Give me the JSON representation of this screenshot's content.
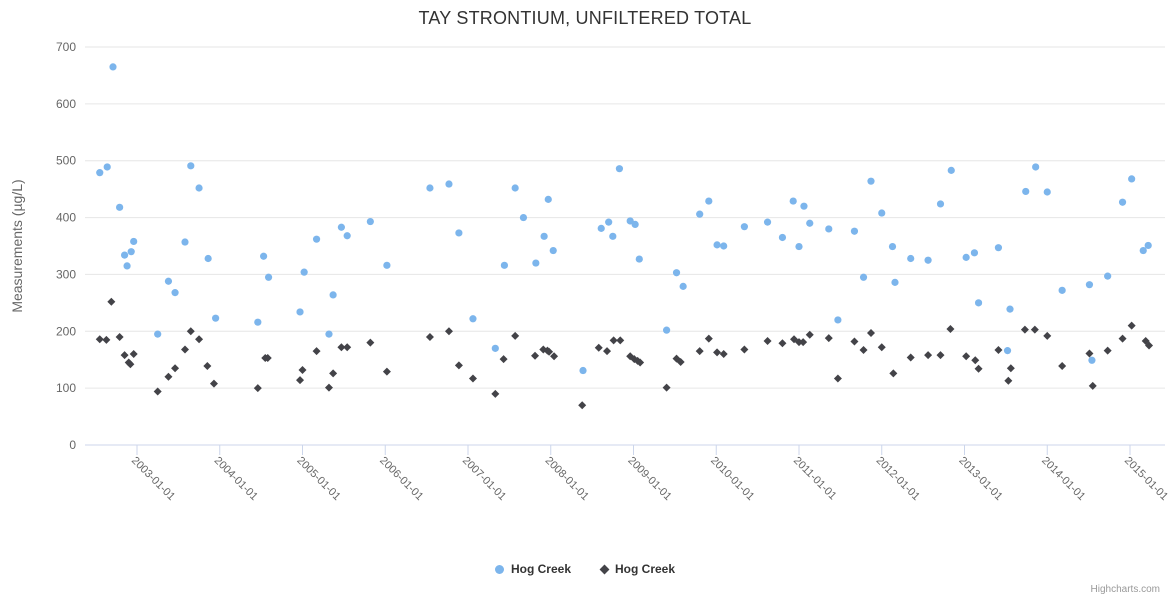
{
  "title": "TAY STRONTIUM, UNFILTERED TOTAL",
  "credits": "Highcharts.com",
  "colors": {
    "series_blue": "#7cb5ec",
    "series_dark": "#434348",
    "gridline": "#e6e6e6",
    "axis_line": "#ccd6eb",
    "title_text": "#333333",
    "axis_text": "#666666",
    "credits_text": "#999999"
  },
  "chart_data": {
    "type": "scatter",
    "title": "TAY STRONTIUM, UNFILTERED TOTAL",
    "xlabel": "",
    "ylabel": "Measurements (µg/L)",
    "ylim": [
      0,
      700
    ],
    "yticks": [
      0,
      100,
      200,
      300,
      400,
      500,
      600,
      700
    ],
    "xticks": [
      "2003-01-01",
      "2004-01-01",
      "2005-01-01",
      "2006-01-01",
      "2007-01-01",
      "2008-01-01",
      "2009-01-01",
      "2010-01-01",
      "2011-01-01",
      "2012-01-01",
      "2013-01-01",
      "2014-01-01",
      "2015-01-01"
    ],
    "x_axis_type": "datetime",
    "x_tick_years": [
      2003,
      2004,
      2005,
      2006,
      2007,
      2008,
      2009,
      2010,
      2011,
      2012,
      2013,
      2014,
      2015
    ],
    "x_range_years": [
      2002.37,
      2015.42
    ],
    "grid": "horizontal-only",
    "legend_position": "bottom-center",
    "series": [
      {
        "name": "Hog Creek",
        "marker": "circle",
        "color": "#7cb5ec",
        "points": [
          [
            2002.55,
            479
          ],
          [
            2002.64,
            489
          ],
          [
            2002.71,
            665
          ],
          [
            2002.79,
            418
          ],
          [
            2002.85,
            334
          ],
          [
            2002.88,
            315
          ],
          [
            2002.93,
            340
          ],
          [
            2002.96,
            358
          ],
          [
            2003.25,
            195
          ],
          [
            2003.38,
            288
          ],
          [
            2003.46,
            268
          ],
          [
            2003.58,
            357
          ],
          [
            2003.65,
            491
          ],
          [
            2003.75,
            452
          ],
          [
            2003.86,
            328
          ],
          [
            2003.95,
            223
          ],
          [
            2004.46,
            216
          ],
          [
            2004.53,
            332
          ],
          [
            2004.59,
            295
          ],
          [
            2004.97,
            234
          ],
          [
            2005.02,
            304
          ],
          [
            2005.17,
            362
          ],
          [
            2005.32,
            195
          ],
          [
            2005.37,
            264
          ],
          [
            2005.47,
            383
          ],
          [
            2005.54,
            368
          ],
          [
            2005.82,
            393
          ],
          [
            2006.02,
            316
          ],
          [
            2006.54,
            452
          ],
          [
            2006.77,
            459
          ],
          [
            2006.89,
            373
          ],
          [
            2007.06,
            222
          ],
          [
            2007.33,
            170
          ],
          [
            2007.44,
            316
          ],
          [
            2007.57,
            452
          ],
          [
            2007.67,
            400
          ],
          [
            2007.82,
            320
          ],
          [
            2007.92,
            367
          ],
          [
            2007.97,
            432
          ],
          [
            2008.03,
            342
          ],
          [
            2008.39,
            131
          ],
          [
            2008.61,
            381
          ],
          [
            2008.7,
            392
          ],
          [
            2008.75,
            367
          ],
          [
            2008.83,
            486
          ],
          [
            2008.96,
            394
          ],
          [
            2009.02,
            388
          ],
          [
            2009.07,
            327
          ],
          [
            2009.4,
            202
          ],
          [
            2009.52,
            303
          ],
          [
            2009.6,
            279
          ],
          [
            2009.8,
            406
          ],
          [
            2009.91,
            429
          ],
          [
            2010.01,
            352
          ],
          [
            2010.09,
            350
          ],
          [
            2010.34,
            384
          ],
          [
            2010.62,
            392
          ],
          [
            2010.8,
            365
          ],
          [
            2010.93,
            429
          ],
          [
            2011.0,
            349
          ],
          [
            2011.06,
            420
          ],
          [
            2011.13,
            390
          ],
          [
            2011.36,
            380
          ],
          [
            2011.47,
            220
          ],
          [
            2011.67,
            376
          ],
          [
            2011.78,
            295
          ],
          [
            2011.87,
            464
          ],
          [
            2012.0,
            408
          ],
          [
            2012.13,
            349
          ],
          [
            2012.16,
            286
          ],
          [
            2012.35,
            328
          ],
          [
            2012.56,
            325
          ],
          [
            2012.71,
            424
          ],
          [
            2012.84,
            483
          ],
          [
            2013.02,
            330
          ],
          [
            2013.12,
            338
          ],
          [
            2013.17,
            250
          ],
          [
            2013.41,
            347
          ],
          [
            2013.52,
            166
          ],
          [
            2013.55,
            239
          ],
          [
            2013.74,
            446
          ],
          [
            2013.86,
            489
          ],
          [
            2014.0,
            445
          ],
          [
            2014.18,
            272
          ],
          [
            2014.51,
            282
          ],
          [
            2014.54,
            149
          ],
          [
            2014.73,
            297
          ],
          [
            2014.91,
            427
          ],
          [
            2015.02,
            468
          ],
          [
            2015.16,
            342
          ],
          [
            2015.22,
            351
          ]
        ]
      },
      {
        "name": "Hog Creek",
        "marker": "diamond",
        "color": "#434348",
        "points": [
          [
            2002.55,
            186
          ],
          [
            2002.63,
            185
          ],
          [
            2002.69,
            252
          ],
          [
            2002.79,
            190
          ],
          [
            2002.85,
            158
          ],
          [
            2002.9,
            145
          ],
          [
            2002.92,
            142
          ],
          [
            2002.96,
            160
          ],
          [
            2003.25,
            94
          ],
          [
            2003.38,
            120
          ],
          [
            2003.46,
            135
          ],
          [
            2003.58,
            168
          ],
          [
            2003.65,
            200
          ],
          [
            2003.75,
            186
          ],
          [
            2003.85,
            139
          ],
          [
            2003.93,
            108
          ],
          [
            2004.46,
            100
          ],
          [
            2004.55,
            153
          ],
          [
            2004.58,
            153
          ],
          [
            2004.97,
            114
          ],
          [
            2005.0,
            132
          ],
          [
            2005.17,
            165
          ],
          [
            2005.32,
            101
          ],
          [
            2005.37,
            126
          ],
          [
            2005.47,
            172
          ],
          [
            2005.54,
            172
          ],
          [
            2005.82,
            180
          ],
          [
            2006.02,
            129
          ],
          [
            2006.54,
            190
          ],
          [
            2006.77,
            200
          ],
          [
            2006.89,
            140
          ],
          [
            2007.06,
            117
          ],
          [
            2007.33,
            90
          ],
          [
            2007.43,
            151
          ],
          [
            2007.57,
            192
          ],
          [
            2007.81,
            157
          ],
          [
            2007.91,
            168
          ],
          [
            2007.96,
            166
          ],
          [
            2007.98,
            164
          ],
          [
            2008.04,
            156
          ],
          [
            2008.38,
            70
          ],
          [
            2008.58,
            171
          ],
          [
            2008.68,
            165
          ],
          [
            2008.76,
            184
          ],
          [
            2008.84,
            184
          ],
          [
            2008.96,
            156
          ],
          [
            2009.01,
            151
          ],
          [
            2009.05,
            148
          ],
          [
            2009.08,
            145
          ],
          [
            2009.4,
            101
          ],
          [
            2009.52,
            152
          ],
          [
            2009.57,
            146
          ],
          [
            2009.8,
            165
          ],
          [
            2009.91,
            187
          ],
          [
            2010.01,
            163
          ],
          [
            2010.09,
            160
          ],
          [
            2010.34,
            168
          ],
          [
            2010.62,
            183
          ],
          [
            2010.8,
            179
          ],
          [
            2010.94,
            186
          ],
          [
            2011.0,
            181
          ],
          [
            2011.05,
            181
          ],
          [
            2011.13,
            194
          ],
          [
            2011.36,
            188
          ],
          [
            2011.47,
            117
          ],
          [
            2011.67,
            182
          ],
          [
            2011.78,
            167
          ],
          [
            2011.87,
            197
          ],
          [
            2012.0,
            172
          ],
          [
            2012.14,
            126
          ],
          [
            2012.35,
            154
          ],
          [
            2012.56,
            158
          ],
          [
            2012.71,
            158
          ],
          [
            2012.83,
            204
          ],
          [
            2013.02,
            156
          ],
          [
            2013.13,
            149
          ],
          [
            2013.17,
            134
          ],
          [
            2013.41,
            167
          ],
          [
            2013.53,
            113
          ],
          [
            2013.56,
            135
          ],
          [
            2013.73,
            203
          ],
          [
            2013.85,
            203
          ],
          [
            2014.0,
            192
          ],
          [
            2014.18,
            139
          ],
          [
            2014.51,
            161
          ],
          [
            2014.55,
            104
          ],
          [
            2014.73,
            166
          ],
          [
            2014.91,
            187
          ],
          [
            2015.02,
            210
          ],
          [
            2015.19,
            183
          ],
          [
            2015.23,
            175
          ]
        ]
      }
    ]
  }
}
